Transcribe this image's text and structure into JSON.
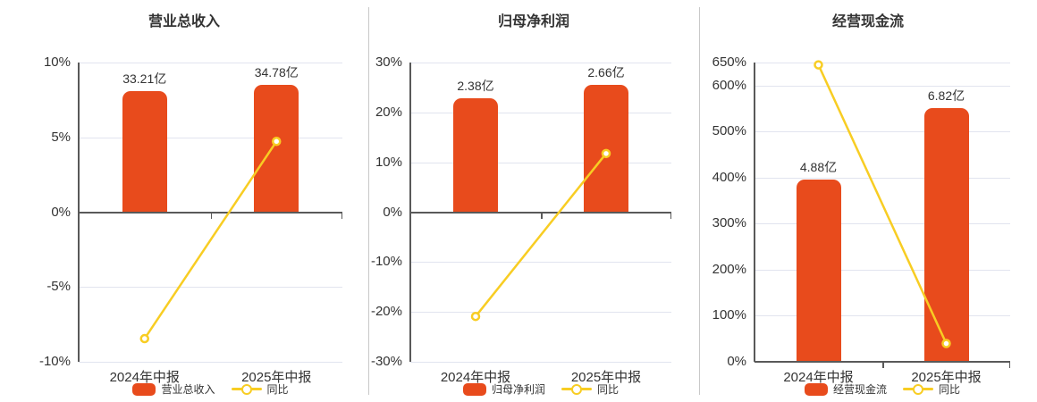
{
  "colors": {
    "background": "#ffffff",
    "bar": "#e84b1c",
    "line": "#f8cd23",
    "grid": "#e1e4ef",
    "axis": "#595959",
    "text": "#333333",
    "divider": "#c9c9c9"
  },
  "chart_data": [
    {
      "type": "bar",
      "title": "营业总收入",
      "categories": [
        "2024年中报",
        "2025年中报"
      ],
      "series": [
        {
          "name": "营业总收入",
          "kind": "bar",
          "unit": "亿",
          "values": [
            33.21,
            34.78
          ],
          "labels": [
            "33.21亿",
            "34.78亿"
          ],
          "display_heights_pct_axis": [
            8.1,
            8.48
          ]
        },
        {
          "name": "同比",
          "kind": "line",
          "unit": "%",
          "values": [
            -8.45,
            4.73
          ]
        }
      ],
      "y_axis": {
        "min": -10,
        "max": 10,
        "unit": "%",
        "ticks": [
          10,
          5,
          0,
          -5,
          -10
        ],
        "tick_labels": [
          "10%",
          "5%",
          "0%",
          "-5%",
          "-10%"
        ]
      },
      "legend": {
        "position": "bottom",
        "items": [
          "营业总收入",
          "同比"
        ]
      }
    },
    {
      "type": "bar",
      "title": "归母净利润",
      "categories": [
        "2024年中报",
        "2025年中报"
      ],
      "series": [
        {
          "name": "归母净利润",
          "kind": "bar",
          "unit": "亿",
          "values": [
            2.38,
            2.66
          ],
          "labels": [
            "2.38亿",
            "2.66亿"
          ],
          "display_heights_pct_axis": [
            22.8,
            25.5
          ]
        },
        {
          "name": "同比",
          "kind": "line",
          "unit": "%",
          "values": [
            -20.9,
            11.76
          ]
        }
      ],
      "y_axis": {
        "min": -30,
        "max": 30,
        "unit": "%",
        "ticks": [
          30,
          20,
          10,
          0,
          -10,
          -20,
          -30
        ],
        "tick_labels": [
          "30%",
          "20%",
          "10%",
          "0%",
          "-10%",
          "-20%",
          "-30%"
        ]
      },
      "legend": {
        "position": "bottom",
        "items": [
          "归母净利润",
          "同比"
        ]
      }
    },
    {
      "type": "bar",
      "title": "经营现金流",
      "categories": [
        "2024年中报",
        "2025年中报"
      ],
      "series": [
        {
          "name": "经营现金流",
          "kind": "bar",
          "unit": "亿",
          "values": [
            4.88,
            6.82
          ],
          "labels": [
            "4.88亿",
            "6.82亿"
          ],
          "display_heights_pct_axis": [
            395,
            552
          ]
        },
        {
          "name": "同比",
          "kind": "line",
          "unit": "%",
          "values": [
            645,
            39.75
          ]
        }
      ],
      "y_axis": {
        "min": 0,
        "max": 650,
        "unit": "%",
        "ticks": [
          650,
          600,
          500,
          400,
          300,
          200,
          100,
          0
        ],
        "tick_labels": [
          "650%",
          "600%",
          "500%",
          "400%",
          "300%",
          "200%",
          "100%",
          "0%"
        ]
      },
      "legend": {
        "position": "bottom",
        "items": [
          "经营现金流",
          "同比"
        ]
      }
    }
  ]
}
